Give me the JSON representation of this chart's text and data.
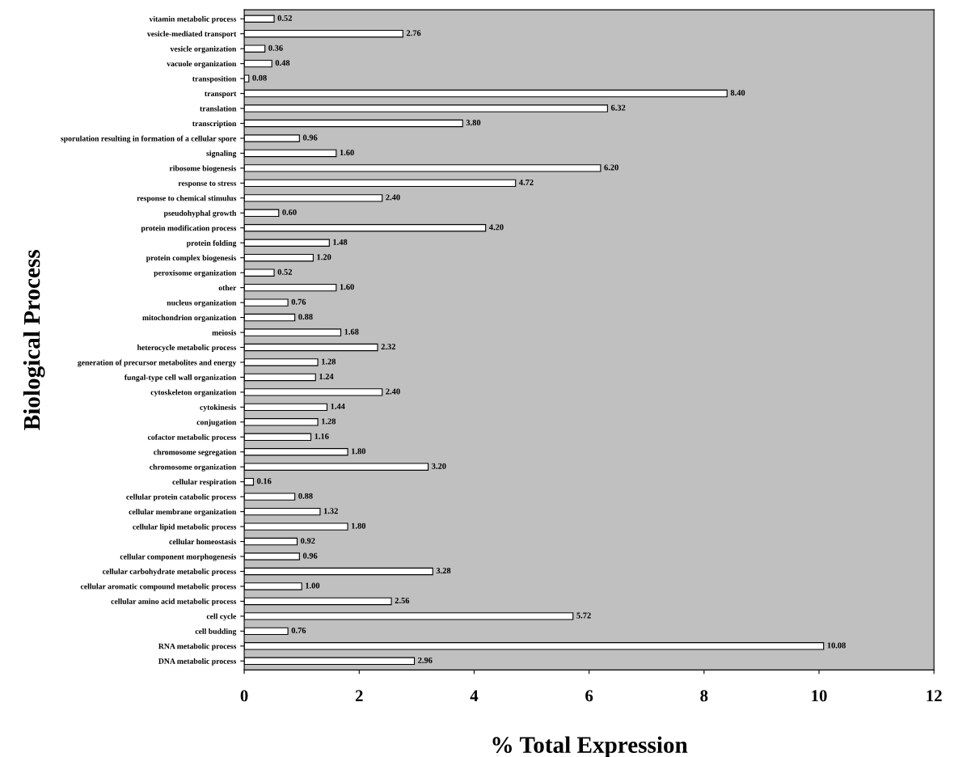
{
  "chart_data": {
    "type": "bar",
    "orientation": "horizontal",
    "xlabel": "% Total Expression",
    "ylabel": "Biological Process",
    "categories": [
      "vitamin metabolic process",
      "vesicle-mediated transport",
      "vesicle organization",
      "vacuole organization",
      "transposition",
      "transport",
      "translation",
      "transcription",
      "sporulation resulting in formation of a cellular spore",
      "signaling",
      "ribosome biogenesis",
      "response to stress",
      "response to chemical stimulus",
      "pseudohyphal growth",
      "protein modification process",
      "protein folding",
      "protein complex biogenesis",
      "peroxisome organization",
      "other",
      "nucleus organization",
      "mitochondrion organization",
      "meiosis",
      "heterocycle metabolic process",
      "generation of precursor metabolites and energy",
      "fungal-type cell wall organization",
      "cytoskeleton organization",
      "cytokinesis",
      "conjugation",
      "cofactor metabolic process",
      "chromosome segregation",
      "chromosome organization",
      "cellular respiration",
      "cellular protein catabolic process",
      "cellular membrane organization",
      "cellular lipid metabolic process",
      "cellular homeostasis",
      "cellular component morphogenesis",
      "cellular carbohydrate metabolic process",
      "cellular aromatic compound metabolic process",
      "cellular amino acid metabolic process",
      "cell cycle",
      "cell budding",
      "RNA metabolic process",
      "DNA metabolic process"
    ],
    "values": [
      0.52,
      2.76,
      0.36,
      0.48,
      0.08,
      8.4,
      6.32,
      3.8,
      0.96,
      1.6,
      6.2,
      4.72,
      2.4,
      0.6,
      4.2,
      1.48,
      1.2,
      0.52,
      1.6,
      0.76,
      0.88,
      1.68,
      2.32,
      1.28,
      1.24,
      2.4,
      1.44,
      1.28,
      1.16,
      1.8,
      3.2,
      0.16,
      0.88,
      1.32,
      1.8,
      0.92,
      0.96,
      3.28,
      1.0,
      2.56,
      5.72,
      0.76,
      10.08,
      2.96
    ],
    "value_labels": [
      "0.52",
      "2.76",
      "0.36",
      "0.48",
      "0.08",
      "8.40",
      "6.32",
      "3.80",
      "0.96",
      "1.60",
      "6.20",
      "4.72",
      "2.40",
      "0.60",
      "4.20",
      "1.48",
      "1.20",
      "0.52",
      "1.60",
      "0.76",
      "0.88",
      "1.68",
      "2.32",
      "1.28",
      "1.24",
      "2.40",
      "1.44",
      "1.28",
      "1.16",
      "1.80",
      "3.20",
      "0.16",
      "0.88",
      "1.32",
      "1.80",
      "0.92",
      "0.96",
      "3.28",
      "1.00",
      "2.56",
      "5.72",
      "0.76",
      "10.08",
      "2.96"
    ],
    "color": "#ffffff",
    "xlim": [
      0,
      12
    ],
    "xticks": [
      0,
      2,
      4,
      6,
      8,
      10,
      12
    ],
    "grid": false,
    "legend": false
  }
}
